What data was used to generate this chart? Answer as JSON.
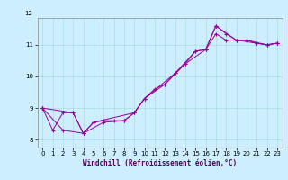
{
  "title": "",
  "xlabel": "Windchill (Refroidissement éolien,°C)",
  "background_color": "#cceeff",
  "line_color": "#990099",
  "xlim": [
    -0.5,
    23.5
  ],
  "ylim": [
    7.75,
    11.85
  ],
  "xticks": [
    0,
    1,
    2,
    3,
    4,
    5,
    6,
    7,
    8,
    9,
    10,
    11,
    12,
    13,
    14,
    15,
    16,
    17,
    18,
    19,
    20,
    21,
    22,
    23
  ],
  "yticks": [
    8,
    9,
    10,
    11
  ],
  "grid_color": "#aadddd",
  "series1": [
    [
      0,
      9.0
    ],
    [
      1,
      8.3
    ],
    [
      2,
      8.85
    ],
    [
      3,
      8.85
    ],
    [
      4,
      8.2
    ],
    [
      5,
      8.55
    ],
    [
      6,
      8.6
    ],
    [
      7,
      8.6
    ],
    [
      8,
      8.6
    ],
    [
      9,
      8.85
    ],
    [
      10,
      9.3
    ],
    [
      11,
      9.6
    ],
    [
      12,
      9.75
    ],
    [
      13,
      10.1
    ],
    [
      14,
      10.4
    ],
    [
      15,
      10.8
    ],
    [
      16,
      10.85
    ],
    [
      17,
      11.6
    ],
    [
      18,
      11.35
    ],
    [
      19,
      11.15
    ],
    [
      20,
      11.15
    ],
    [
      21,
      11.05
    ],
    [
      22,
      11.0
    ],
    [
      23,
      11.05
    ]
  ],
  "series2": [
    [
      0,
      9.0
    ],
    [
      3,
      8.85
    ],
    [
      4,
      8.2
    ],
    [
      5,
      8.55
    ],
    [
      9,
      8.85
    ],
    [
      10,
      9.3
    ],
    [
      13,
      10.1
    ],
    [
      15,
      10.8
    ],
    [
      16,
      10.85
    ],
    [
      17,
      11.6
    ],
    [
      19,
      11.15
    ],
    [
      21,
      11.05
    ],
    [
      22,
      11.0
    ],
    [
      23,
      11.05
    ]
  ],
  "series3": [
    [
      0,
      9.0
    ],
    [
      2,
      8.3
    ],
    [
      4,
      8.2
    ],
    [
      6,
      8.55
    ],
    [
      8,
      8.6
    ],
    [
      9,
      8.85
    ],
    [
      10,
      9.3
    ],
    [
      12,
      9.75
    ],
    [
      14,
      10.4
    ],
    [
      16,
      10.85
    ],
    [
      17,
      11.35
    ],
    [
      18,
      11.15
    ],
    [
      20,
      11.15
    ],
    [
      22,
      11.0
    ],
    [
      23,
      11.05
    ]
  ],
  "lw": 0.7,
  "ms": 3.5,
  "mew": 0.8,
  "xlabel_fontsize": 5.5,
  "tick_fontsize": 5.0
}
